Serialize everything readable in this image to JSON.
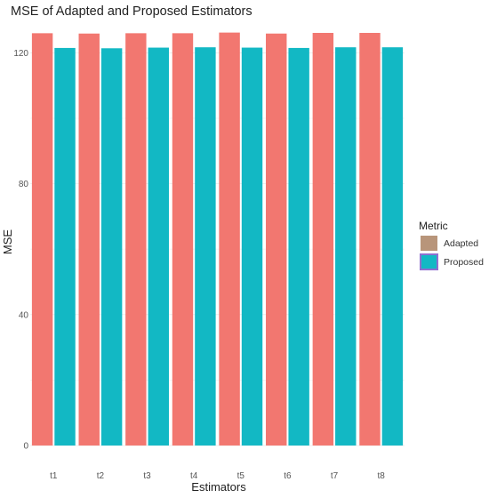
{
  "chart_data": {
    "type": "bar",
    "title": "MSE of Adapted and Proposed Estimators",
    "xlabel": "Estimators",
    "ylabel": "MSE",
    "categories": [
      "t1",
      "t2",
      "t3",
      "t4",
      "t5",
      "t6",
      "t7",
      "t8"
    ],
    "series": [
      {
        "name": "Adapted",
        "values": [
          126,
          125.9,
          126,
          126,
          126.2,
          125.9,
          126.1,
          126.1
        ]
      },
      {
        "name": "Proposed",
        "values": [
          121.5,
          121.4,
          121.6,
          121.7,
          121.6,
          121.5,
          121.7,
          121.7
        ]
      }
    ],
    "ylim": [
      -3,
      128
    ],
    "yticks": [
      0,
      40,
      80,
      120
    ],
    "grid": true,
    "legend": {
      "title": "Metric",
      "placement": "right"
    },
    "colors": {
      "adapted": "#f27770",
      "proposed": "#12b8c4",
      "adapted_legend": "#b8957a",
      "proposed_legend_fill": "#12b8c4",
      "proposed_legend_border": "#8e6fd0"
    }
  }
}
